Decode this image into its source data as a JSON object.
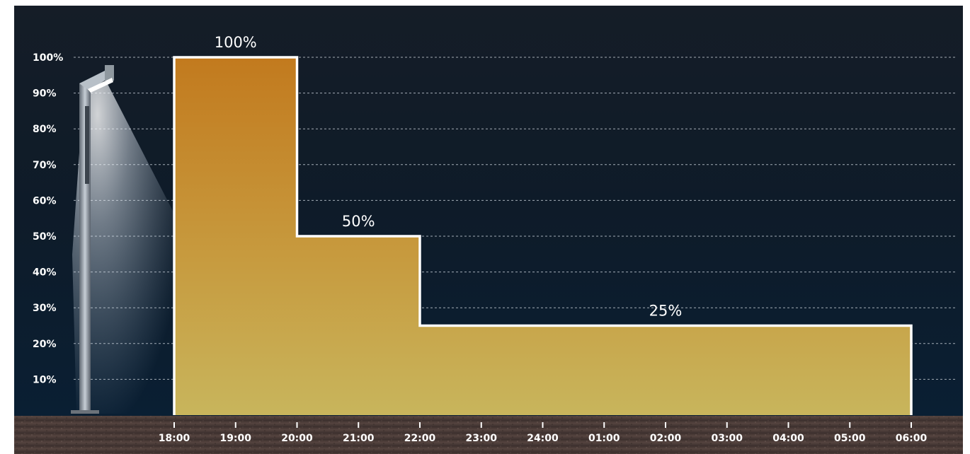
{
  "chart_data": {
    "type": "area",
    "step": true,
    "title": "",
    "xlabel": "",
    "ylabel": "",
    "x_ticks": [
      "18:00",
      "19:00",
      "20:00",
      "21:00",
      "22:00",
      "23:00",
      "24:00",
      "01:00",
      "02:00",
      "03:00",
      "04:00",
      "05:00",
      "06:00"
    ],
    "y_ticks": [
      "100%",
      "90%",
      "80%",
      "70%",
      "60%",
      "50%",
      "40%",
      "30%",
      "20%",
      "10%"
    ],
    "ylim": [
      0,
      100
    ],
    "grid": true,
    "segments": [
      {
        "start": "18:00",
        "end": "20:00",
        "value": 100,
        "label": "100%"
      },
      {
        "start": "20:00",
        "end": "22:00",
        "value": 50,
        "label": "50%"
      },
      {
        "start": "22:00",
        "end": "06:00",
        "value": 25,
        "label": "25%"
      }
    ]
  },
  "colors": {
    "background_top": "#141d26",
    "background_bottom": "#0a1e30",
    "fill_top": "#c27c1f",
    "fill_bottom": "#c8b45a",
    "outline": "#ffffff",
    "ground": "#4a3a36"
  },
  "decor": {
    "icon": "street-lamp-icon"
  }
}
